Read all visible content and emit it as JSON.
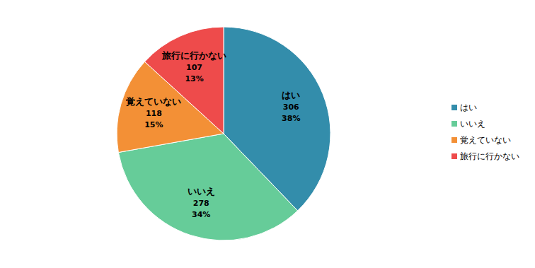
{
  "chart_data": {
    "type": "pie",
    "categories": [
      "はい",
      "いいえ",
      "覚えていない",
      "旅行に行かない"
    ],
    "values": [
      306,
      278,
      118,
      107
    ],
    "percentages": [
      38,
      34,
      15,
      13
    ],
    "percent_labels": [
      "38%",
      "34%",
      "15%",
      "13%"
    ],
    "colors": [
      "#338dab",
      "#66cc99",
      "#f39036",
      "#ee4b4b"
    ],
    "data_labels": true,
    "legend": "right"
  }
}
